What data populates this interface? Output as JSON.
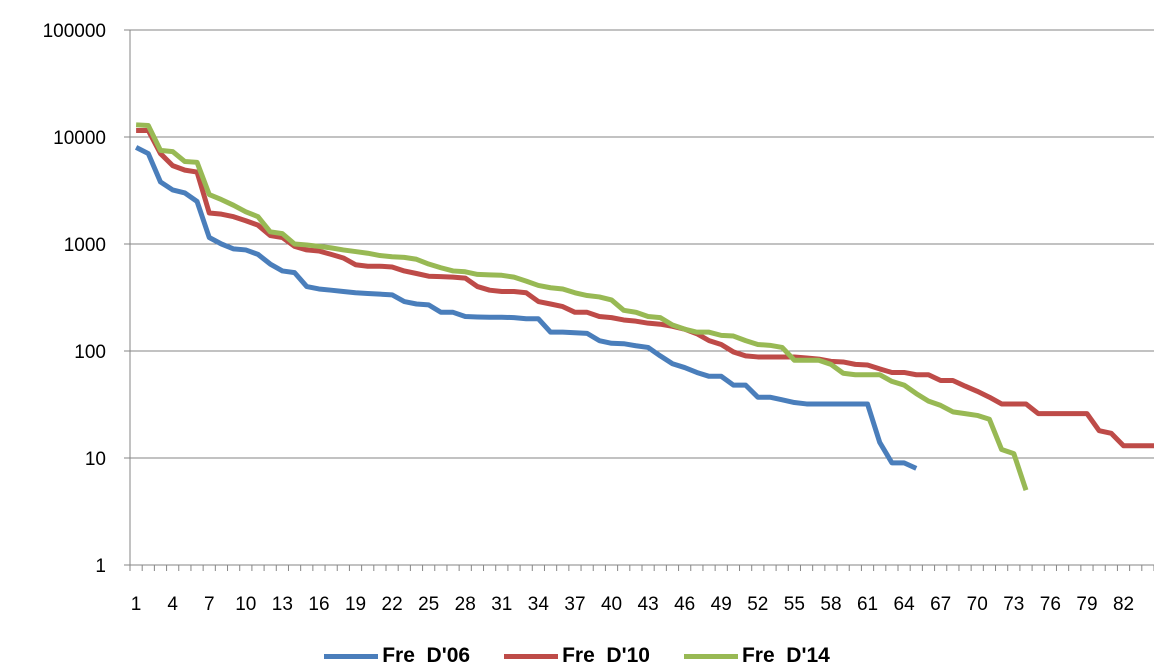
{
  "chart_data": {
    "type": "line",
    "title": "",
    "xlabel": "",
    "ylabel": "",
    "y_scale": "log",
    "ylim": [
      1,
      100000
    ],
    "y_ticks": [
      1,
      10,
      100,
      1000,
      10000,
      100000
    ],
    "y_tick_labels": [
      "1",
      "10",
      "100",
      "1000",
      "10000",
      "100000"
    ],
    "x_range": [
      1,
      84
    ],
    "x_tick_labels": [
      "1",
      "4",
      "7",
      "10",
      "13",
      "16",
      "19",
      "22",
      "25",
      "28",
      "31",
      "34",
      "37",
      "40",
      "43",
      "46",
      "49",
      "52",
      "55",
      "58",
      "61",
      "64",
      "67",
      "70",
      "73",
      "76",
      "79",
      "82"
    ],
    "grid": "horizontal",
    "legend_position": "bottom",
    "series": [
      {
        "name": "Fre  D'06",
        "color": "#4a7ebb",
        "values": [
          8000,
          7000,
          3800,
          3200,
          3000,
          2500,
          1150,
          1000,
          900,
          880,
          800,
          650,
          560,
          540,
          400,
          380,
          370,
          360,
          350,
          345,
          340,
          335,
          290,
          275,
          270,
          230,
          230,
          210,
          208,
          207,
          207,
          205,
          200,
          200,
          150,
          150,
          148,
          146,
          125,
          118,
          117,
          112,
          108,
          90,
          76,
          70,
          63,
          58,
          58,
          48,
          48,
          37,
          37,
          35,
          33,
          32,
          32,
          32,
          32,
          32,
          32,
          14,
          9,
          9,
          8
        ]
      },
      {
        "name": "Fre  D'10",
        "color": "#be4b48",
        "values": [
          11500,
          11500,
          7000,
          5400,
          4900,
          4700,
          1950,
          1900,
          1800,
          1650,
          1500,
          1200,
          1150,
          950,
          880,
          860,
          800,
          740,
          640,
          620,
          620,
          610,
          560,
          530,
          500,
          495,
          490,
          480,
          400,
          370,
          360,
          360,
          350,
          290,
          275,
          260,
          230,
          230,
          210,
          205,
          195,
          190,
          182,
          178,
          170,
          160,
          145,
          125,
          115,
          98,
          90,
          88,
          88,
          88,
          88,
          86,
          84,
          80,
          79,
          75,
          74,
          68,
          63,
          63,
          60,
          60,
          53,
          53,
          47,
          42,
          37,
          32,
          32,
          32,
          26,
          26,
          26,
          26,
          26,
          18,
          17,
          13,
          13,
          13,
          13
        ]
      },
      {
        "name": "Fre  D'14",
        "color": "#98b954",
        "values": [
          13000,
          12800,
          7500,
          7300,
          5900,
          5800,
          2900,
          2600,
          2300,
          2000,
          1800,
          1300,
          1250,
          1000,
          980,
          950,
          920,
          880,
          850,
          820,
          780,
          760,
          750,
          720,
          650,
          600,
          560,
          550,
          520,
          515,
          510,
          490,
          450,
          410,
          390,
          380,
          350,
          330,
          320,
          300,
          240,
          230,
          210,
          205,
          175,
          160,
          150,
          150,
          140,
          138,
          125,
          115,
          113,
          108,
          82,
          82,
          82,
          75,
          62,
          60,
          60,
          60,
          52,
          48,
          40,
          34,
          31,
          27,
          26,
          25,
          23,
          12,
          11,
          5
        ]
      }
    ]
  }
}
